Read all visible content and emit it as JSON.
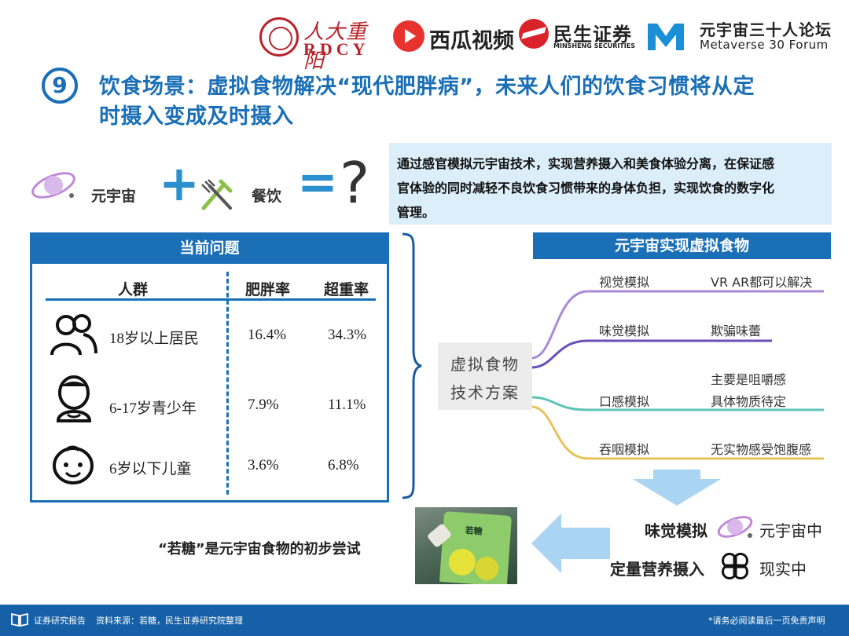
{
  "logos": {
    "rdcy_cn": "人大重阳",
    "rdcy_en": "RDCY",
    "xigua": "西瓜视频",
    "minsheng_cn": "民生证券",
    "minsheng_en": "MINSHENG SECURITIES",
    "metaverse_cn": "元宇宙三十人论坛",
    "metaverse_en": "Metaverse 30 Forum"
  },
  "title": {
    "number": "9",
    "line1": "饮食场景：虚拟食物解决“现代肥胖病”，未来人们的饮食习惯将从定",
    "line2": "时摄入变成及时摄入"
  },
  "equation": {
    "term1": "元宇宙",
    "plus": "+",
    "term2": "餐饮",
    "equals": "=",
    "result": "?"
  },
  "summary": {
    "lines": [
      "通过感官模拟元宇宙技术，实现营养摄入和美食体验分离，在保证感",
      "官体验的同时减轻不良饮食习惯带来的身体负担，实现饮食的数字化",
      "管理。"
    ]
  },
  "problems": {
    "header": "当前问题",
    "columns": [
      "人群",
      "肥胖率",
      "超重率"
    ],
    "rows": [
      {
        "group": "18岁以上居民",
        "obesity": "16.4%",
        "overweight": "34.3%"
      },
      {
        "group": "6-17岁青少年",
        "obesity": "7.9%",
        "overweight": "11.1%"
      },
      {
        "group": "6岁以下儿童",
        "obesity": "3.6%",
        "overweight": "6.8%"
      }
    ]
  },
  "tech": {
    "line1": "虚拟食物",
    "line2": "技术方案",
    "header": "元宇宙实现虚拟食物",
    "branches": [
      {
        "name": "视觉模拟",
        "desc": [
          "VR AR都可以解决"
        ],
        "color": "#a88ad6"
      },
      {
        "name": "味觉模拟",
        "desc": [
          "欺骗味蕾"
        ],
        "color": "#6b4fb8"
      },
      {
        "name": "口感模拟",
        "desc": [
          "主要是咀嚼感",
          "具体物质待定"
        ],
        "color": "#5fc3b8"
      },
      {
        "name": "吞咽模拟",
        "desc": [
          "无实物感受饱腹感"
        ],
        "color": "#e8c25a"
      }
    ]
  },
  "product": {
    "pack_label": "若糖",
    "caption": "“若糖”是元宇宙食物的初步尝试"
  },
  "legend": {
    "taste": "味觉模拟",
    "metaverse": "元宇宙中",
    "nutrition": "定量营养摄入",
    "reality": "现实中"
  },
  "footer": {
    "label": "证券研究报告",
    "source": "资料来源：若糖，民生证券研究院整理",
    "disclaimer": "*请务必阅读最后一页免责声明"
  },
  "colors": {
    "brand_blue": "#1a6fb6",
    "accent_blue": "#2a8fcf",
    "summary_bg": "#dbeefa",
    "footer_bg": "#1560a6",
    "rdcy_red": "#b8242b"
  }
}
